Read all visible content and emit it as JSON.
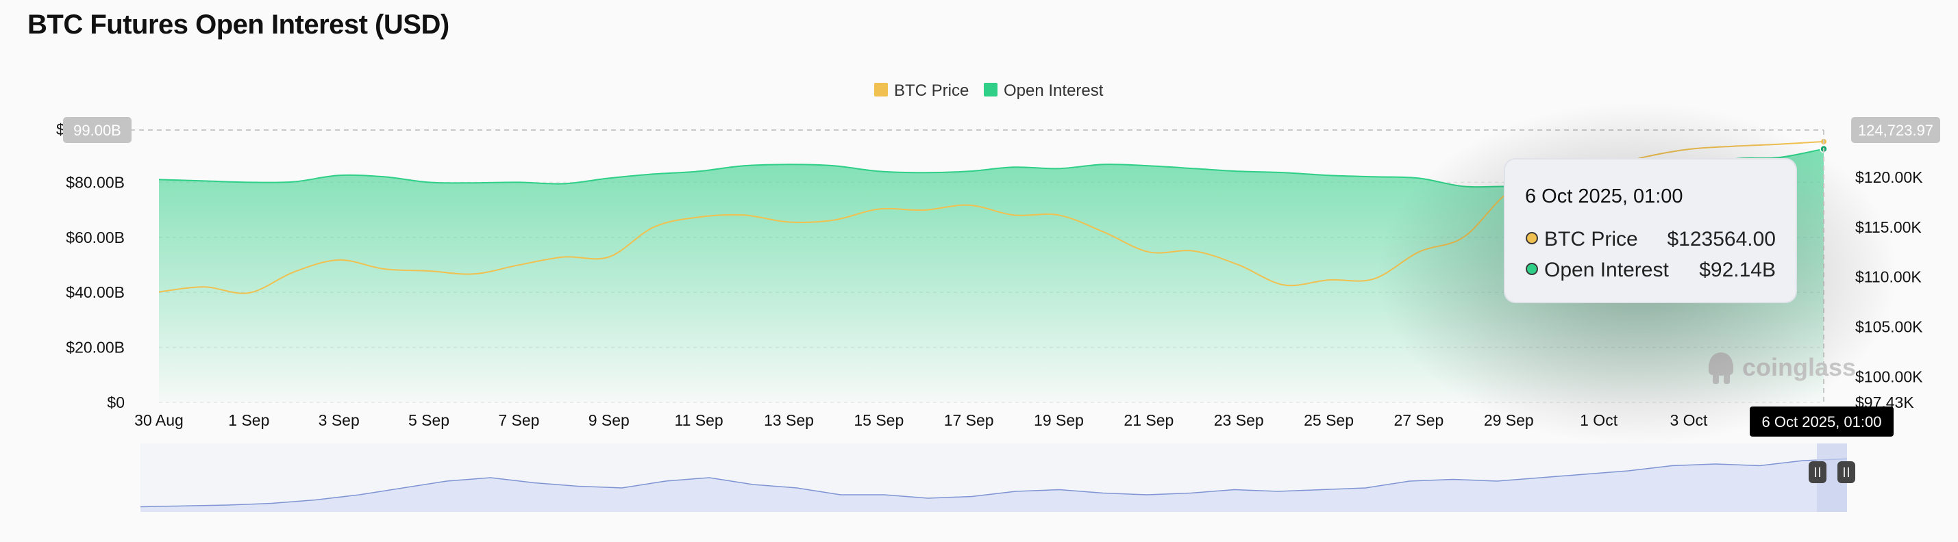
{
  "title": "BTC Futures Open Interest (USD)",
  "colors": {
    "btc_price": "#f0c050",
    "open_interest": "#2fcf87",
    "navigator_fill": "#dfe5f6",
    "navigator_line": "#7f94d4",
    "tooltip_bg": "#eef0f4"
  },
  "chart_data": {
    "type": "area",
    "title": "BTC Futures Open Interest (USD)",
    "x_labels": [
      "30 Aug",
      "1 Sep",
      "3 Sep",
      "5 Sep",
      "7 Sep",
      "9 Sep",
      "11 Sep",
      "13 Sep",
      "15 Sep",
      "17 Sep",
      "19 Sep",
      "21 Sep",
      "23 Sep",
      "25 Sep",
      "27 Sep",
      "29 Sep",
      "1 Oct",
      "3 Oct"
    ],
    "y_left_ticks": [
      "$0",
      "$20.00B",
      "$40.00B",
      "$60.00B",
      "$80.00B"
    ],
    "y_right_ticks": [
      "$97.43K",
      "$100.00K",
      "$105.00K",
      "$110.00K",
      "$115.00K",
      "$120.00K"
    ],
    "y_left_range": [
      0,
      99
    ],
    "y_right_range": [
      97430,
      124723.97
    ],
    "crosshair": {
      "left_label": "99.00B",
      "right_label": "124,723.97",
      "x_label": "6 Oct 2025, 01:00"
    },
    "legend": [
      "BTC Price",
      "Open Interest"
    ],
    "series": [
      {
        "name": "Open Interest",
        "unit": "B USD",
        "axis": "left",
        "x": [
          0,
          1,
          2,
          3,
          4,
          5,
          6,
          7,
          8,
          9,
          10,
          11,
          12,
          13,
          14,
          15,
          16,
          17,
          18,
          19,
          20,
          21,
          22,
          23,
          24,
          25,
          26,
          27,
          28,
          29,
          30,
          31,
          32,
          33,
          34,
          35,
          36,
          37
        ],
        "values": [
          81,
          80.5,
          80,
          80.2,
          82.5,
          82,
          80,
          79.8,
          80,
          79.5,
          81.5,
          83,
          84,
          86,
          86.5,
          86,
          84,
          83.5,
          84,
          85.5,
          85,
          86.5,
          86,
          85,
          84,
          83.5,
          82.5,
          82,
          81.5,
          78.5,
          78.5,
          78,
          80,
          83,
          85,
          88.5,
          89,
          92.14
        ]
      },
      {
        "name": "BTC Price",
        "unit": "USD",
        "axis": "right",
        "x": [
          0,
          1,
          2,
          3,
          4,
          5,
          6,
          7,
          8,
          9,
          10,
          11,
          12,
          13,
          14,
          15,
          16,
          17,
          18,
          19,
          20,
          21,
          22,
          23,
          24,
          25,
          26,
          27,
          28,
          29,
          30,
          31,
          32,
          33,
          34,
          35,
          36,
          37
        ],
        "values": [
          108500,
          109000,
          108400,
          110500,
          111700,
          110800,
          110600,
          110300,
          111200,
          112000,
          112000,
          115000,
          116000,
          116200,
          115500,
          115700,
          116800,
          116700,
          117200,
          116200,
          116200,
          114500,
          112500,
          112600,
          111200,
          109200,
          109700,
          109800,
          112500,
          114000,
          118500,
          120000,
          120800,
          122000,
          122800,
          123100,
          123300,
          123564
        ]
      }
    ]
  },
  "tooltip": {
    "date": "6 Oct 2025, 01:00",
    "rows": [
      {
        "label": "BTC Price",
        "value": "$123564.00"
      },
      {
        "label": "Open Interest",
        "value": "$92.14B"
      }
    ]
  },
  "watermark": "coinglass",
  "navigator": {
    "values": [
      3,
      3.5,
      4,
      5,
      7,
      10,
      14,
      18,
      20,
      17,
      15,
      14,
      18,
      20,
      16,
      14,
      10,
      10,
      8,
      9,
      12,
      13,
      11,
      10,
      11,
      13,
      12,
      13,
      14,
      18,
      19,
      18,
      20,
      22,
      24,
      27,
      28,
      27,
      30,
      31
    ]
  }
}
